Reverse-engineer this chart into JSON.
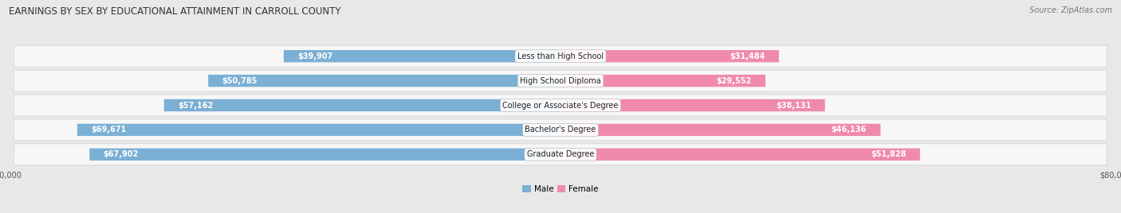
{
  "title": "EARNINGS BY SEX BY EDUCATIONAL ATTAINMENT IN CARROLL COUNTY",
  "source": "Source: ZipAtlas.com",
  "categories": [
    "Less than High School",
    "High School Diploma",
    "College or Associate's Degree",
    "Bachelor's Degree",
    "Graduate Degree"
  ],
  "male_values": [
    39907,
    50785,
    57162,
    69671,
    67902
  ],
  "female_values": [
    31484,
    29552,
    38131,
    46136,
    51828
  ],
  "male_color": "#7bafd4",
  "female_color": "#f08aaa",
  "max_val": 80000,
  "background_color": "#e8e8e8",
  "row_bg_color": "#f7f7f7",
  "row_border_color": "#d0d0d0",
  "title_fontsize": 8.5,
  "bar_label_fontsize": 7,
  "cat_label_fontsize": 7,
  "axis_label_fontsize": 7,
  "legend_fontsize": 7.5,
  "source_fontsize": 7
}
